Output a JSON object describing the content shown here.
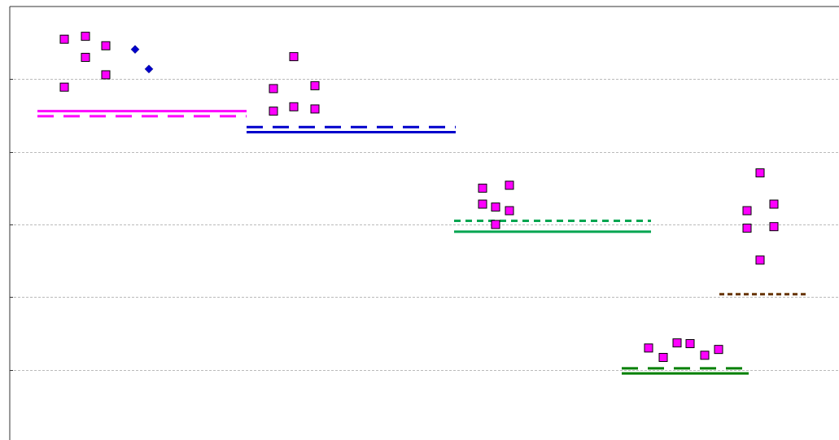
{
  "chart_data": {
    "type": "scatter",
    "title": "",
    "xlabel": "",
    "ylabel": "",
    "xlim": [
      0,
      1031
    ],
    "ylim": [
      0,
      6
    ],
    "grid": true,
    "gridlines_y": [
      1,
      2,
      3,
      4,
      5
    ],
    "colors": {
      "axis": "#333333",
      "grid": "#bbbbbb",
      "marker_fill": "#ff00ff",
      "marker_diamond": "#0000cc"
    },
    "series": [
      {
        "kind": "square",
        "points": [
          [
            79,
            5.55
          ],
          [
            105,
            5.59
          ],
          [
            105,
            5.3
          ],
          [
            130,
            5.46
          ],
          [
            130,
            5.06
          ],
          [
            79,
            4.89
          ],
          [
            361,
            5.31
          ],
          [
            336,
            4.87
          ],
          [
            361,
            4.62
          ],
          [
            387,
            4.91
          ],
          [
            336,
            4.56
          ],
          [
            387,
            4.59
          ],
          [
            593,
            3.5
          ],
          [
            626,
            3.54
          ],
          [
            593,
            3.28
          ],
          [
            609,
            3.24
          ],
          [
            626,
            3.19
          ],
          [
            609,
            3.0
          ],
          [
            934,
            3.71
          ],
          [
            918,
            3.19
          ],
          [
            951,
            3.28
          ],
          [
            918,
            2.95
          ],
          [
            951,
            2.97
          ],
          [
            934,
            2.51
          ],
          [
            797,
            1.3
          ],
          [
            815,
            1.17
          ],
          [
            832,
            1.37
          ],
          [
            848,
            1.36
          ],
          [
            866,
            1.2
          ],
          [
            883,
            1.28
          ]
        ]
      },
      {
        "kind": "diamond",
        "points": [
          [
            166,
            5.41
          ],
          [
            183,
            5.14
          ]
        ]
      }
    ],
    "reference_lines": [
      {
        "x": [
          46,
          303
        ],
        "y": 4.56,
        "style": "solid",
        "color": "#ff00ff"
      },
      {
        "x": [
          46,
          303
        ],
        "y": 4.49,
        "style": "dashed",
        "color": "#ff00ff"
      },
      {
        "x": [
          303,
          560
        ],
        "y": 4.34,
        "style": "dashed",
        "color": "#0000cc"
      },
      {
        "x": [
          303,
          560
        ],
        "y": 4.27,
        "style": "solid",
        "color": "#0000cc"
      },
      {
        "x": [
          558,
          800
        ],
        "y": 3.05,
        "style": "dashed-short",
        "color": "#00a550"
      },
      {
        "x": [
          558,
          800
        ],
        "y": 2.9,
        "style": "solid",
        "color": "#00a550"
      },
      {
        "x": [
          884,
          990
        ],
        "y": 2.04,
        "style": "dotted",
        "color": "#663300"
      },
      {
        "x": [
          764,
          920
        ],
        "y": 1.02,
        "style": "dashed",
        "color": "#008000"
      },
      {
        "x": [
          764,
          920
        ],
        "y": 0.95,
        "style": "solid",
        "color": "#008000"
      }
    ]
  }
}
